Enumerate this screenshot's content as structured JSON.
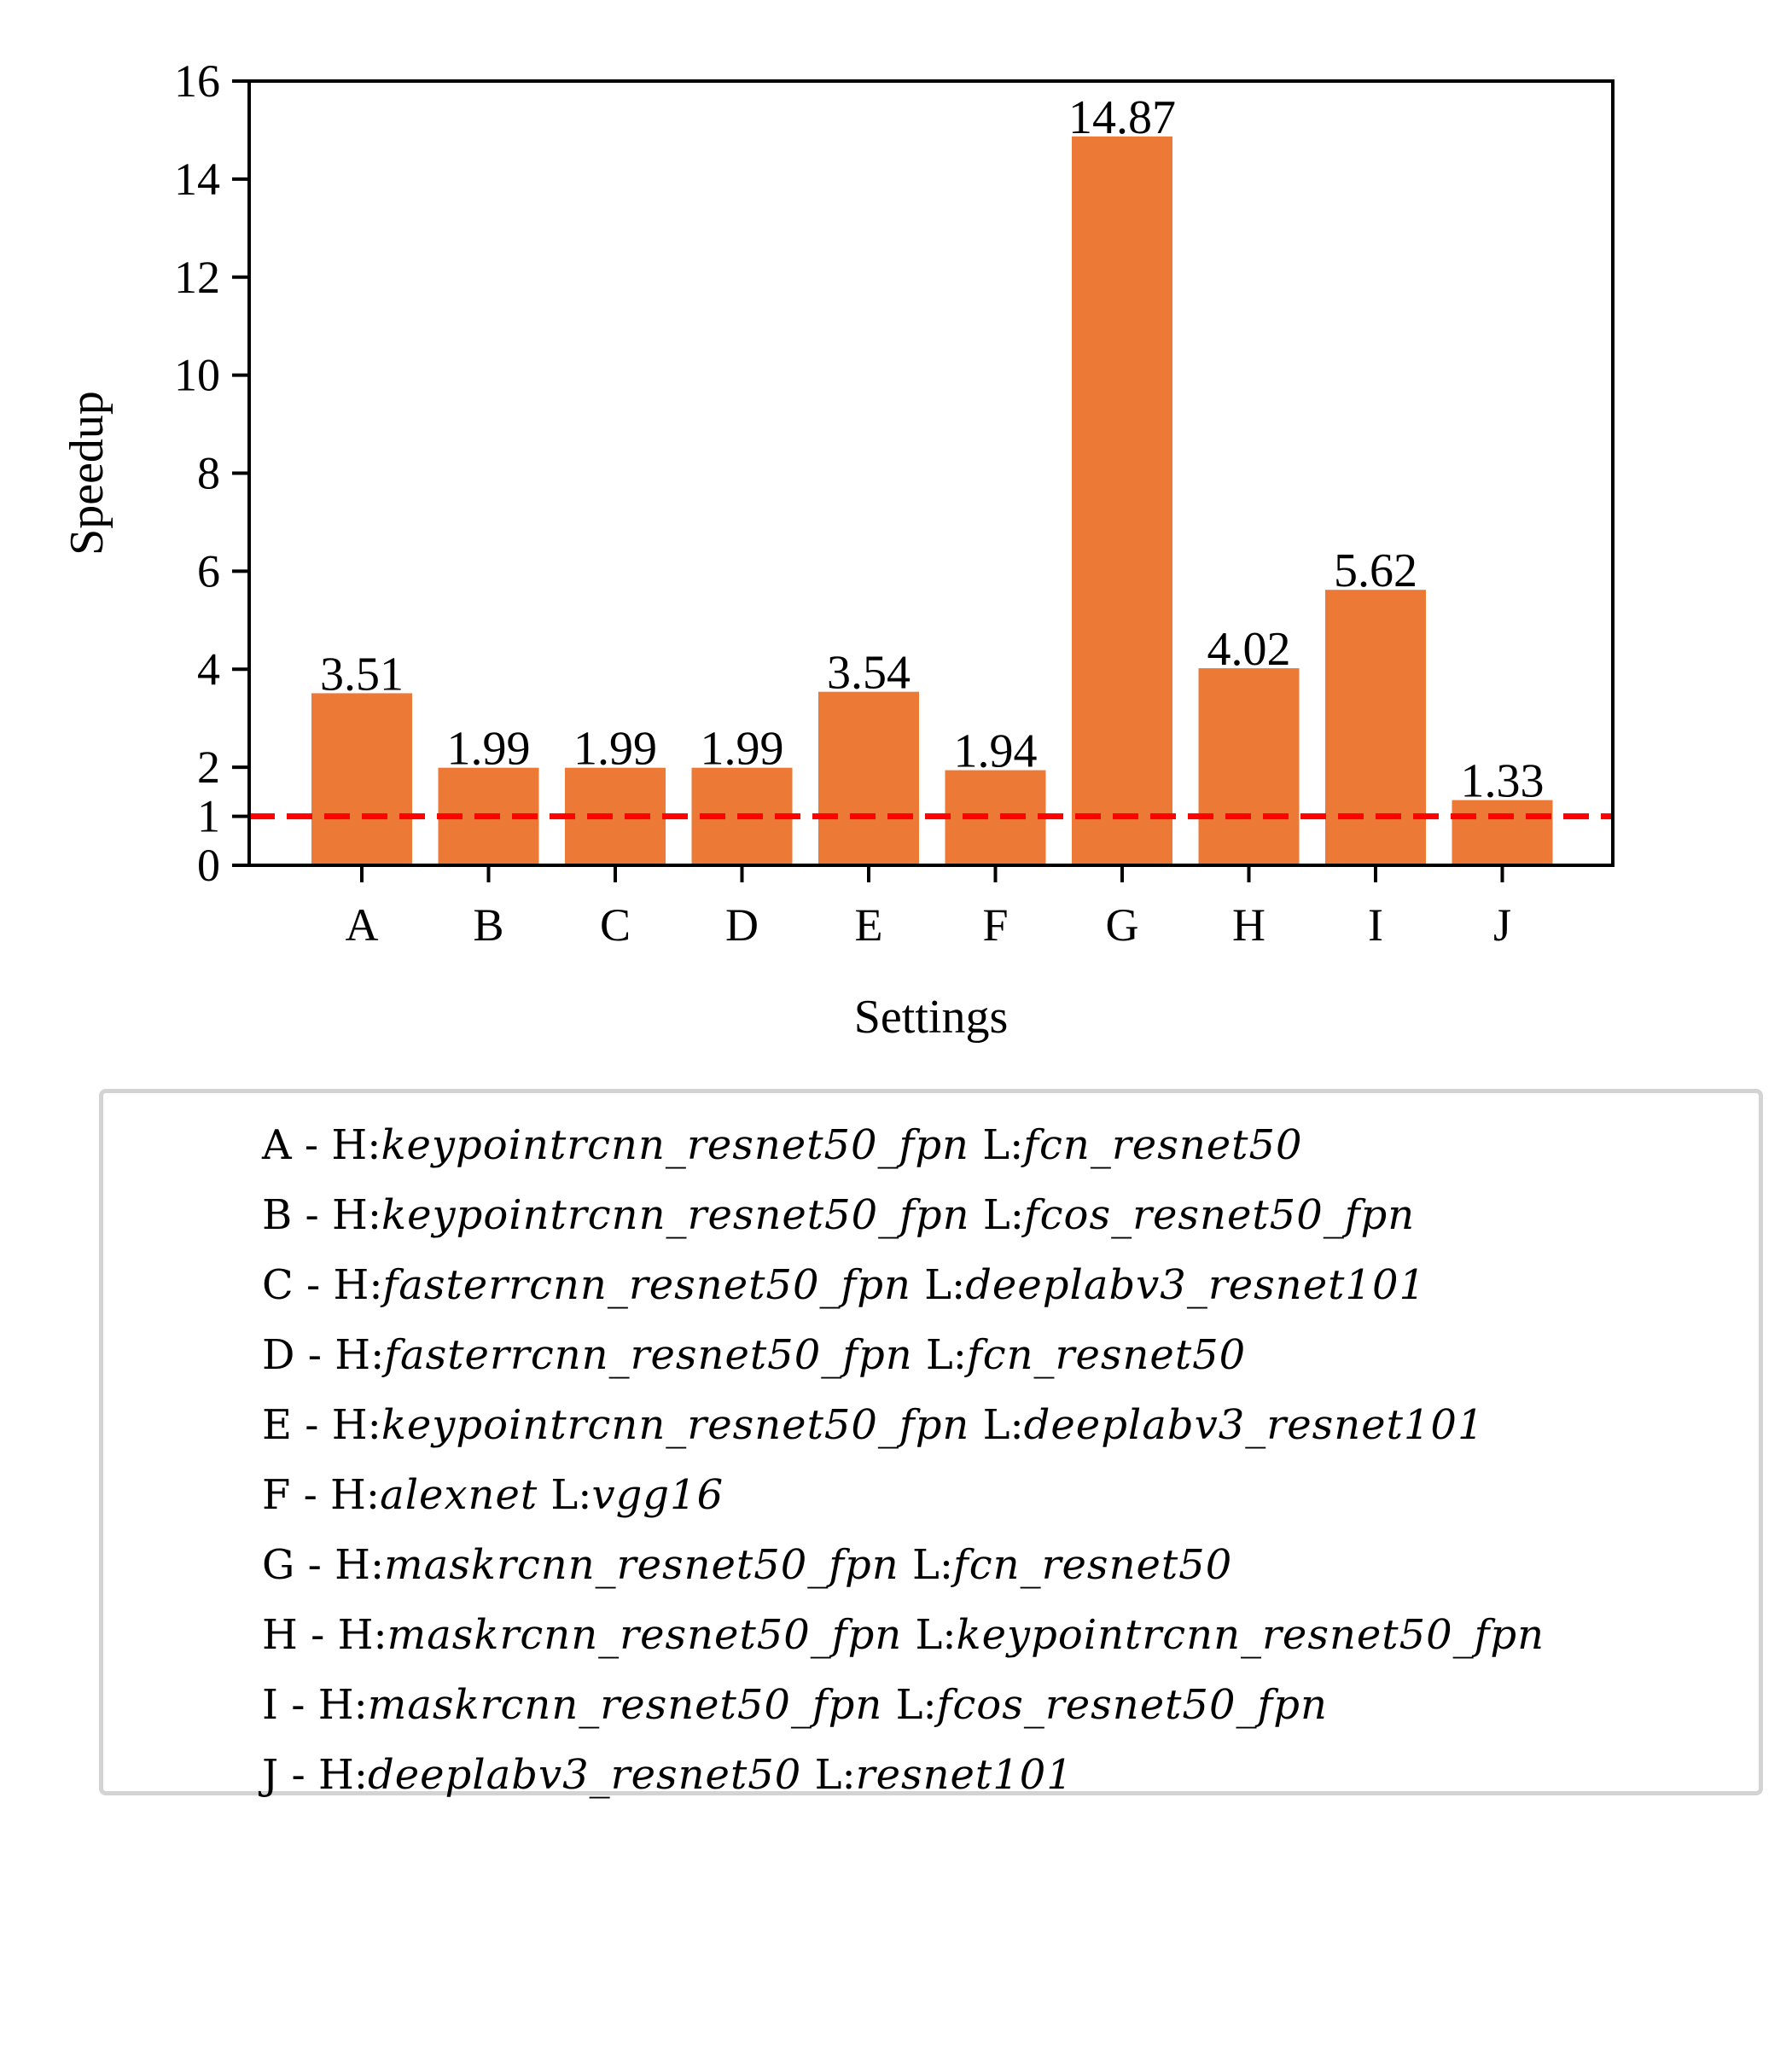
{
  "chart_data": {
    "type": "bar",
    "title": "",
    "xlabel": "Settings",
    "ylabel": "Speedup",
    "categories": [
      "A",
      "B",
      "C",
      "D",
      "E",
      "F",
      "G",
      "H",
      "I",
      "J"
    ],
    "values": [
      3.51,
      1.99,
      1.99,
      1.99,
      3.54,
      1.94,
      14.87,
      4.02,
      5.62,
      1.33
    ],
    "value_labels": [
      "3.51",
      "1.99",
      "1.99",
      "1.99",
      "3.54",
      "1.94",
      "14.87",
      "4.02",
      "5.62",
      "1.33"
    ],
    "ylim": [
      0,
      16
    ],
    "yticks": [
      0,
      1,
      2,
      4,
      6,
      8,
      10,
      12,
      14,
      16
    ],
    "ytick_labels": [
      "0",
      "1",
      "2",
      "4",
      "6",
      "8",
      "10",
      "12",
      "14",
      "16"
    ],
    "bar_color": "#ed7936",
    "reference_line": {
      "y": 1,
      "style": "dashed",
      "color": "#ff0000"
    },
    "grid": false,
    "legend_placement": "below chart",
    "legend": [
      {
        "key": "A",
        "h_prefix": " - H:",
        "h_model": "keypointrcnn_resnet50_fpn",
        "l_prefix": " L:",
        "l_model": "fcn_resnet50"
      },
      {
        "key": "B",
        "h_prefix": " - H:",
        "h_model": "keypointrcnn_resnet50_fpn",
        "l_prefix": " L:",
        "l_model": "fcos_resnet50_fpn"
      },
      {
        "key": "C",
        "h_prefix": " - H:",
        "h_model": "fasterrcnn_resnet50_fpn",
        "l_prefix": " L:",
        "l_model": "deeplabv3_resnet101"
      },
      {
        "key": "D",
        "h_prefix": " - H:",
        "h_model": "fasterrcnn_resnet50_fpn",
        "l_prefix": " L:",
        "l_model": "fcn_resnet50"
      },
      {
        "key": "E",
        "h_prefix": " - H:",
        "h_model": "keypointrcnn_resnet50_fpn",
        "l_prefix": " L:",
        "l_model": "deeplabv3_resnet101"
      },
      {
        "key": "F",
        "h_prefix": " - H:",
        "h_model": "alexnet",
        "l_prefix": " L:",
        "l_model": "vgg16"
      },
      {
        "key": "G",
        "h_prefix": " - H:",
        "h_model": "maskrcnn_resnet50_fpn",
        "l_prefix": " L:",
        "l_model": "fcn_resnet50"
      },
      {
        "key": "H",
        "h_prefix": " - H:",
        "h_model": "maskrcnn_resnet50_fpn",
        "l_prefix": " L:",
        "l_model": "keypointrcnn_resnet50_fpn"
      },
      {
        "key": "I",
        "h_prefix": " - H:",
        "h_model": "maskrcnn_resnet50_fpn",
        "l_prefix": " L:",
        "l_model": "fcos_resnet50_fpn"
      },
      {
        "key": "J",
        "h_prefix": " - H:",
        "h_model": "deeplabv3_resnet50",
        "l_prefix": " L:",
        "l_model": "resnet101"
      }
    ]
  }
}
